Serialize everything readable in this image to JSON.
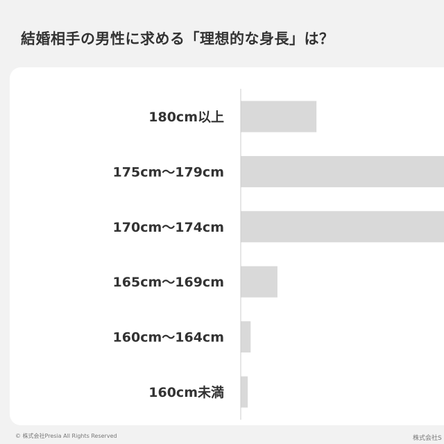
{
  "title": "結婚相手の男性に求める「理想的な身長」は？",
  "footer": {
    "copyright": "© 株式会社Presia All Rights Reserved",
    "right": "株式会社S"
  },
  "chart_data": {
    "type": "bar",
    "orientation": "horizontal",
    "categories": [
      "180cm以上",
      "175cm〜179cm",
      "170cm〜174cm",
      "165cm〜169cm",
      "160cm〜164cm",
      "160cm未満"
    ],
    "values": [
      13,
      40,
      36,
      6.3,
      1.7,
      1.2
    ],
    "bar_color": "#d9d9d9",
    "grid": false
  }
}
